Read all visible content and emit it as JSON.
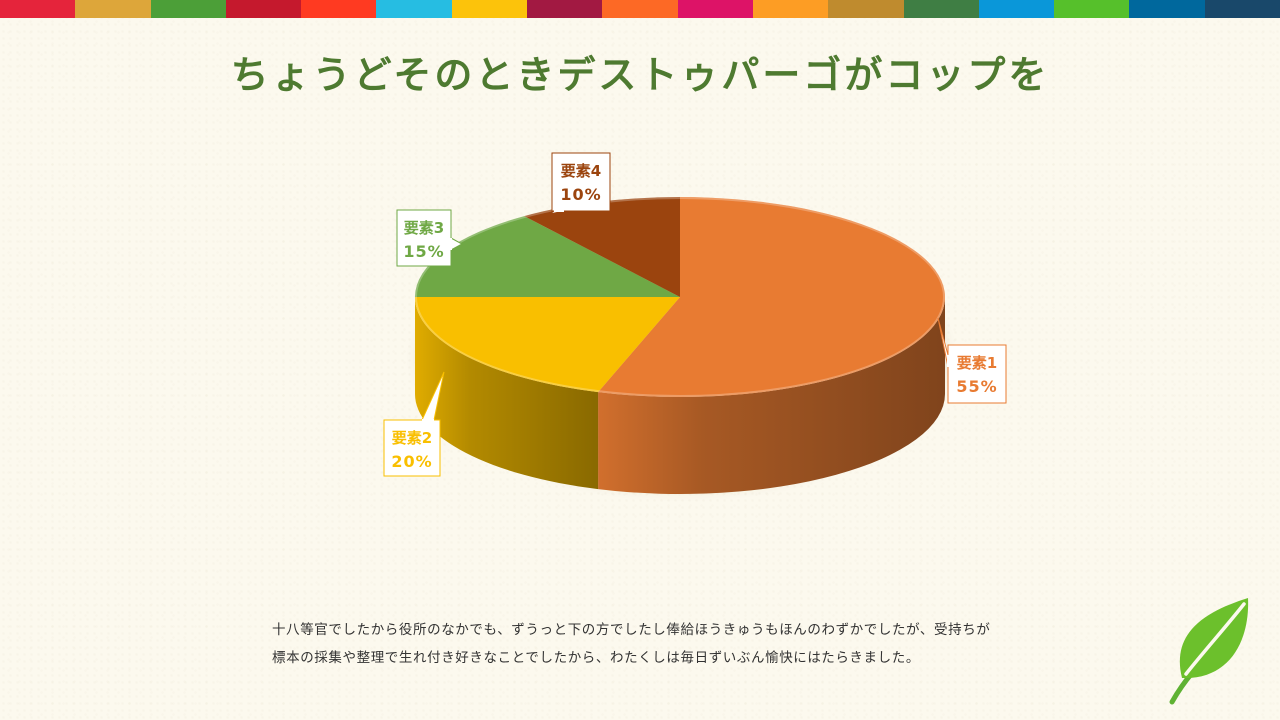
{
  "slide": {
    "title": "ちょうどそのときデストゥパーゴがコップを",
    "body_lines": [
      "十八等官でしたから役所のなかでも、ずうっと下の方でしたし俸給ほうきゅうもほんのわずかでしたが、受持ちが",
      "標本の採集や整理で生れ付き好きなことでしたから、わたくしは毎日ずいぶん愉快にはたらきました。"
    ],
    "title_color": "#4e7a30",
    "top_colors": [
      "#e5243b",
      "#dda63a",
      "#4c9f38",
      "#c5192d",
      "#ff3a21",
      "#26bde2",
      "#fcc30b",
      "#a21942",
      "#fd6925",
      "#dd1367",
      "#fd9d24",
      "#bf8b2e",
      "#3f7e44",
      "#0a97d9",
      "#56c02b",
      "#00689d",
      "#19486a"
    ],
    "leaf_icon": "leaf-icon"
  },
  "chart_data": {
    "type": "pie",
    "style": "3d",
    "categories": [
      "要素1",
      "要素2",
      "要素3",
      "要素4"
    ],
    "values": [
      55,
      20,
      15,
      10
    ],
    "value_labels": [
      "55%",
      "20%",
      "15%",
      "10%"
    ],
    "colors": [
      "#e87b32",
      "#f9bf00",
      "#6fa845",
      "#9b440e"
    ],
    "start_angle": "12 o'clock",
    "direction": "clockwise",
    "legend": "none",
    "data_labels": "callouts"
  }
}
